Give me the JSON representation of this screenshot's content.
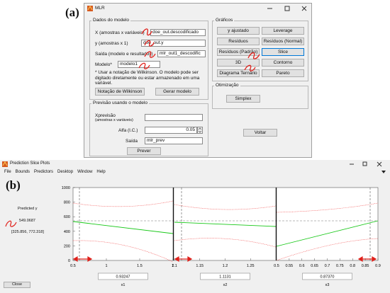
{
  "window_a": {
    "label": "(a)",
    "title": "MLR",
    "model_panel": {
      "title": "Dados do modelo",
      "fields": [
        {
          "label": "X (amostras x variáveis)",
          "value": "doe_out.descodificado"
        },
        {
          "label": "y (amostras x 1)",
          "value": "doe_out.y"
        },
        {
          "label": "Saída (modelo e resultados)",
          "value": "mlr_out1_descodific"
        },
        {
          "label": "Modelo*",
          "value": "modelo1"
        }
      ],
      "note": "* Usar a notação de Wilkinson. O modelo pode ser digitado diretamente ou estar armazenado em uma variável.",
      "buttons": [
        "Notação de Wilkinson",
        "Gerar modelo"
      ]
    },
    "prediction_panel": {
      "title": "Previsão usando o modelo",
      "xprev_label": "Xprevisão",
      "xprev_sublabel": "(amostras x variáveis)",
      "alpha_label": "Alfa (I.C.)",
      "alpha_value": "0.05",
      "output_label": "Saída",
      "output_value": "mlr_prev",
      "button": "Prever"
    },
    "graphs_panel": {
      "title": "Gráficos",
      "buttons": [
        "y ajustado",
        "Leverage",
        "Resíduos",
        "Resíduos (Normal)",
        "Resíduos (Padrão)",
        "Slice",
        "3D",
        "Contorno",
        "Diagrama Ternário",
        "Pareto"
      ]
    },
    "optimization_panel": {
      "title": "Otimização",
      "button": "Simplex"
    },
    "back_button": "Voltar"
  },
  "window_b": {
    "label": "(b)",
    "title": "Prediction Slice Plots",
    "menu": [
      "File",
      "Bounds",
      "Predictors",
      "Desktop",
      "Window",
      "Help"
    ],
    "predicted_label": "Predicted y",
    "predicted_value": "549.0687",
    "interval": "[325.856, 772.318]",
    "yticks": [
      "0",
      "200",
      "400",
      "600",
      "800",
      "1000"
    ],
    "plots": [
      {
        "xticks": [
          "0.5",
          "1",
          "1.5",
          "2"
        ],
        "value": "0.93247",
        "name": "x1"
      },
      {
        "xticks": [
          "1.1",
          "1.15",
          "1.2",
          "1.25"
        ],
        "value": "1.1131",
        "name": "x2"
      },
      {
        "xticks": [
          "0.5",
          "0.55",
          "0.6",
          "0.65",
          "0.7",
          "0.75",
          "0.8",
          "0.85",
          "0.9"
        ],
        "value": "0.87370",
        "name": "x3"
      }
    ],
    "close_button": "Close"
  }
}
